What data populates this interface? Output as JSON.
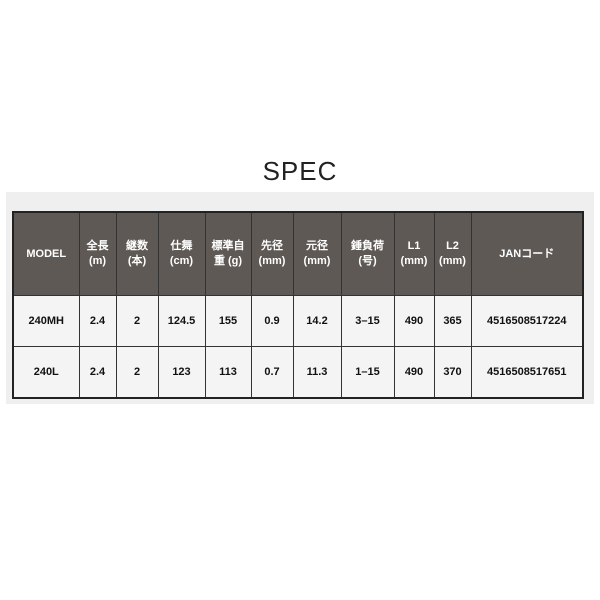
{
  "title": "SPEC",
  "headers": [
    [
      "MODEL",
      ""
    ],
    [
      "全長",
      "(m)"
    ],
    [
      "継数",
      "(本)"
    ],
    [
      "仕舞",
      "(cm)"
    ],
    [
      "標準自",
      "重 (g)"
    ],
    [
      "先径",
      "(mm)"
    ],
    [
      "元径",
      "(mm)"
    ],
    [
      "錘負荷",
      "(号)"
    ],
    [
      "L1",
      "(mm)"
    ],
    [
      "L2",
      "(mm)"
    ],
    [
      "JANコード",
      ""
    ]
  ],
  "rows": [
    [
      "240MH",
      "2.4",
      "2",
      "124.5",
      "155",
      "0.9",
      "14.2",
      "3–15",
      "490",
      "365",
      "4516508517224"
    ],
    [
      "240L",
      "2.4",
      "2",
      "123",
      "113",
      "0.7",
      "11.3",
      "1–15",
      "490",
      "370",
      "4516508517651"
    ]
  ]
}
